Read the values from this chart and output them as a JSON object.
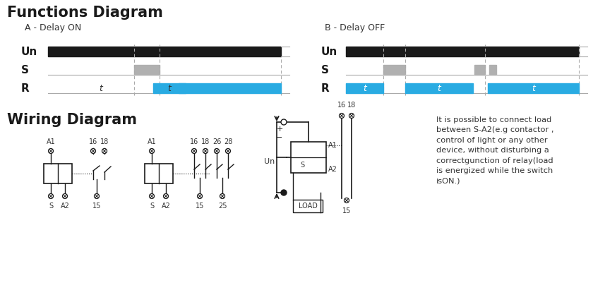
{
  "title1": "Functions Diagram",
  "title2": "Wiring Diagram",
  "subtitle_a": "A - Delay ON",
  "subtitle_b": "B - Delay OFF",
  "bg_color": "#ffffff",
  "black": "#1a1a1a",
  "blue": "#29abe2",
  "gray_pulse": "#b0b0b0",
  "line_gray": "#aaaaaa",
  "text_color": "#333333",
  "wiring_text": "It is possible to connect load\nbetween S-A2(e.g contactor ,\ncontrol of light or any other\ndevice, without disturbing a\ncorrectgunction of relay(load\nis energized while the switch\nisON.)"
}
